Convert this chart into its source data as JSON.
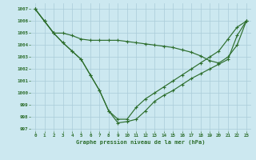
{
  "title": "Graphe pression niveau de la mer (hPa)",
  "bg_color": "#cce8f0",
  "grid_color": "#aaccd8",
  "line_color": "#2d6e2d",
  "xlim": [
    -0.5,
    23.5
  ],
  "ylim": [
    996.8,
    1007.5
  ],
  "yticks": [
    997,
    998,
    999,
    1000,
    1001,
    1002,
    1003,
    1004,
    1005,
    1006,
    1007
  ],
  "xticks": [
    0,
    1,
    2,
    3,
    4,
    5,
    6,
    7,
    8,
    9,
    10,
    11,
    12,
    13,
    14,
    15,
    16,
    17,
    18,
    19,
    20,
    21,
    22,
    23
  ],
  "series1": [
    1007.0,
    1006.0,
    1005.0,
    1005.0,
    1004.8,
    1004.5,
    1004.4,
    1004.4,
    1004.4,
    1004.4,
    1004.3,
    1004.2,
    1004.1,
    1004.0,
    1003.9,
    1003.8,
    1003.6,
    1003.4,
    1003.1,
    1002.7,
    1002.5,
    1003.0,
    1004.0,
    1006.0
  ],
  "series2": [
    1007.0,
    1006.0,
    1005.0,
    1004.2,
    1003.5,
    1002.8,
    1001.5,
    1000.2,
    998.5,
    997.5,
    997.6,
    997.8,
    998.5,
    999.3,
    999.8,
    1000.2,
    1000.7,
    1001.2,
    1001.6,
    1002.0,
    1002.4,
    1002.8,
    1004.8,
    1006.0
  ],
  "series3": [
    1007.0,
    1006.0,
    1005.0,
    1004.2,
    1003.5,
    1002.8,
    1001.5,
    1000.2,
    998.5,
    997.8,
    997.8,
    998.8,
    999.5,
    1000.0,
    1000.5,
    1001.0,
    1001.5,
    1002.0,
    1002.5,
    1003.0,
    1003.5,
    1004.5,
    1005.5,
    1006.0
  ]
}
